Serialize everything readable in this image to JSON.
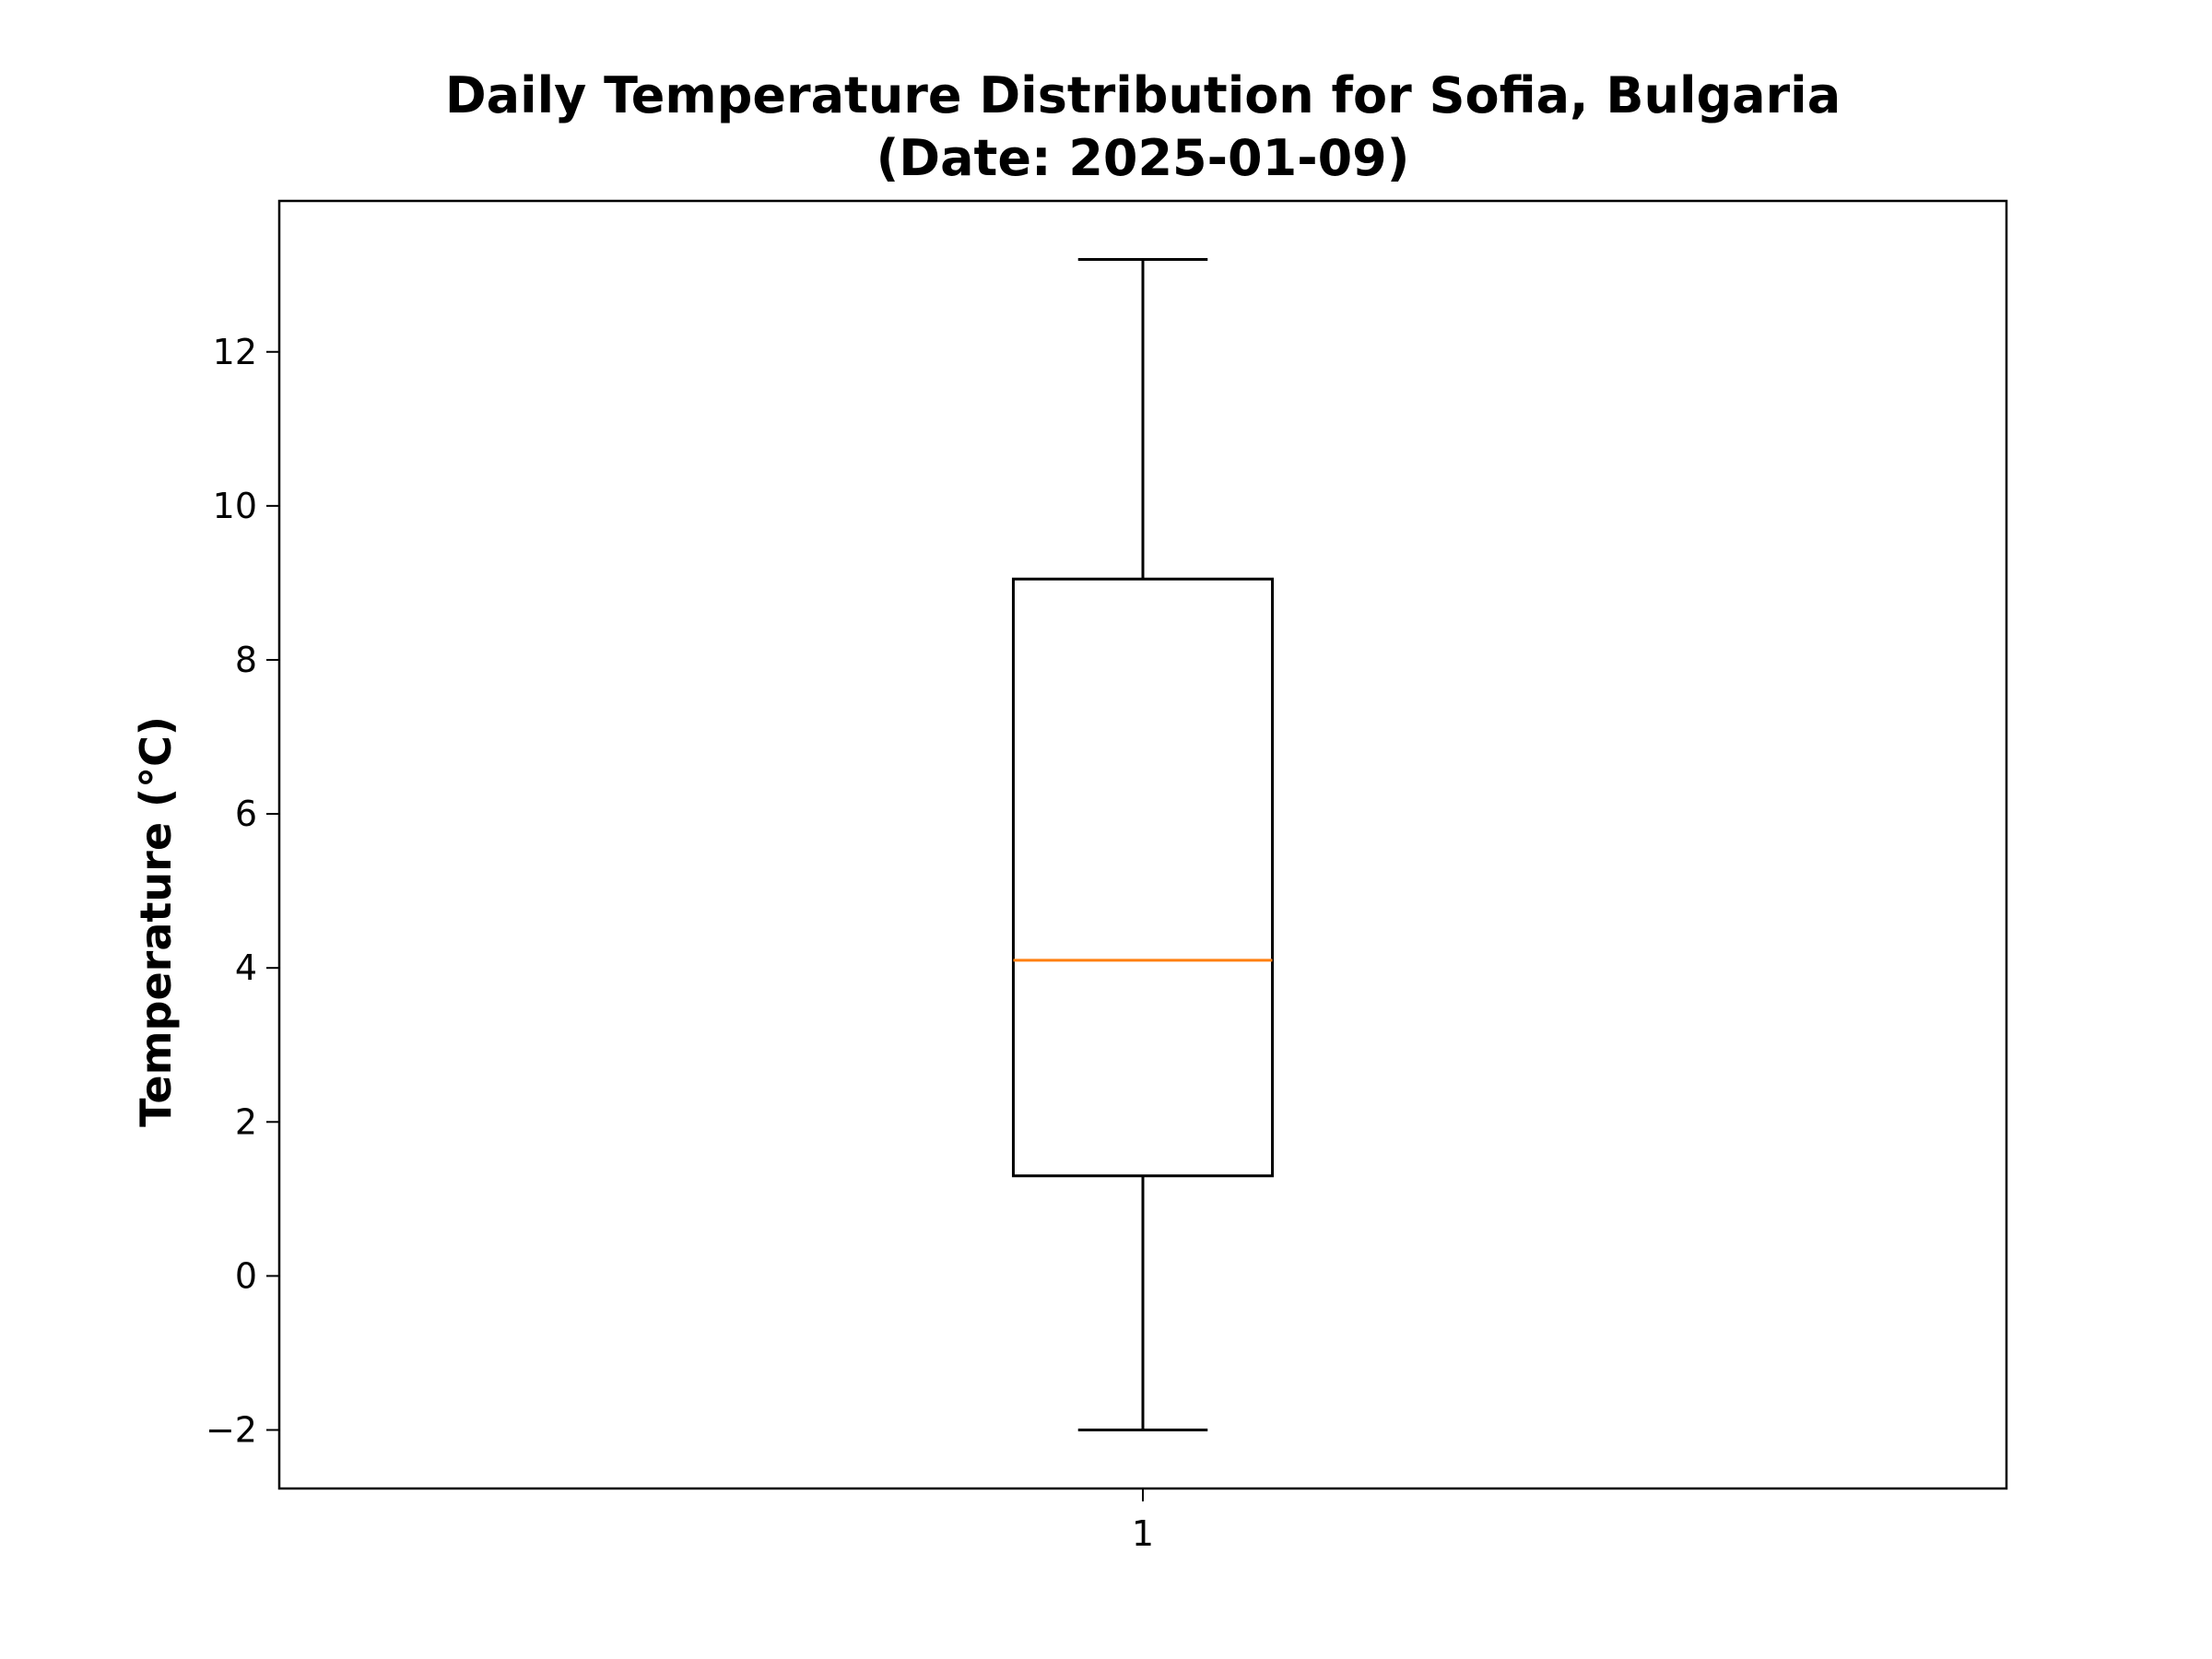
{
  "chart_data": {
    "type": "boxplot",
    "title": "Daily Temperature Distribution for Sofia, Bulgaria",
    "subtitle": "(Date: 2025-01-09)",
    "xlabel": "",
    "ylabel": "Temperature (°C)",
    "categories": [
      "1"
    ],
    "boxes": [
      {
        "category": "1",
        "whisker_low": -2.0,
        "q1": 1.3,
        "median": 4.1,
        "q3": 9.05,
        "whisker_high": 13.2
      }
    ],
    "ylim": [
      -2.76,
      13.96
    ],
    "yticks": [
      -2,
      0,
      2,
      4,
      6,
      8,
      10,
      12
    ],
    "ytick_labels": [
      "−2",
      "0",
      "2",
      "4",
      "6",
      "8",
      "10",
      "12"
    ],
    "grid": false,
    "colors": {
      "box": "#000000",
      "median": "#ff7f0e"
    }
  }
}
